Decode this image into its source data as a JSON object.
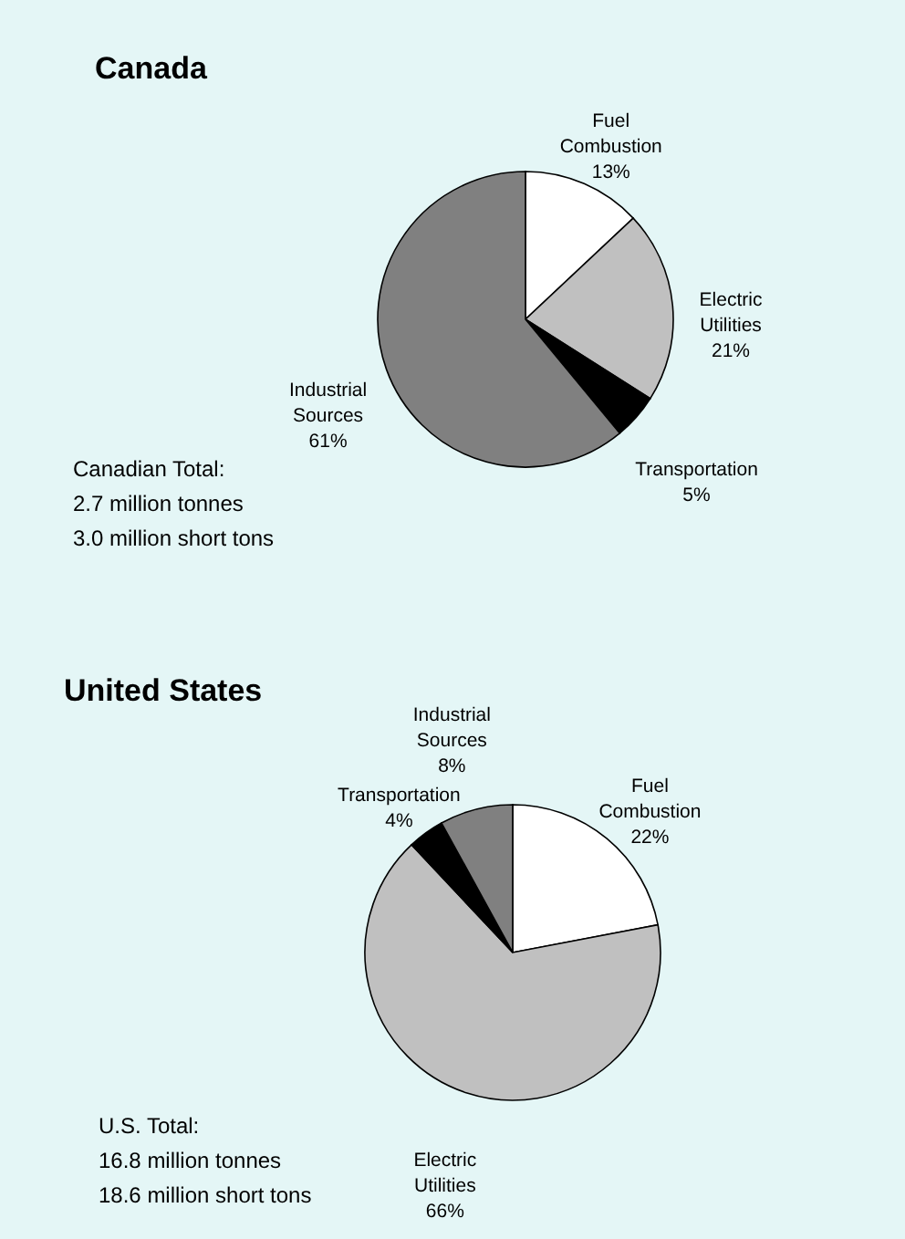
{
  "chart_data": [
    {
      "type": "pie",
      "title": "Canada",
      "categories": [
        "Fuel Combustion",
        "Electric Utilities",
        "Transportation",
        "Industrial Sources"
      ],
      "values": [
        13,
        21,
        5,
        61
      ],
      "value_labels": [
        "13%",
        "21%",
        "5%",
        "61%"
      ],
      "colors": [
        "#ffffff",
        "#c0c0c0",
        "#000000",
        "#808080"
      ],
      "annotations": [
        "Canadian Total:",
        "2.7 million tonnes",
        "3.0 million short tons"
      ]
    },
    {
      "type": "pie",
      "title": "United States",
      "categories": [
        "Fuel Combustion",
        "Electric Utilities",
        "Transportation",
        "Industrial Sources"
      ],
      "values": [
        22,
        66,
        4,
        8
      ],
      "value_labels": [
        "22%",
        "66%",
        "4%",
        "8%"
      ],
      "colors": [
        "#ffffff",
        "#c0c0c0",
        "#000000",
        "#808080"
      ],
      "annotations": [
        "U.S. Total:",
        "16.8 million tonnes",
        "18.6 million short tons"
      ]
    }
  ]
}
